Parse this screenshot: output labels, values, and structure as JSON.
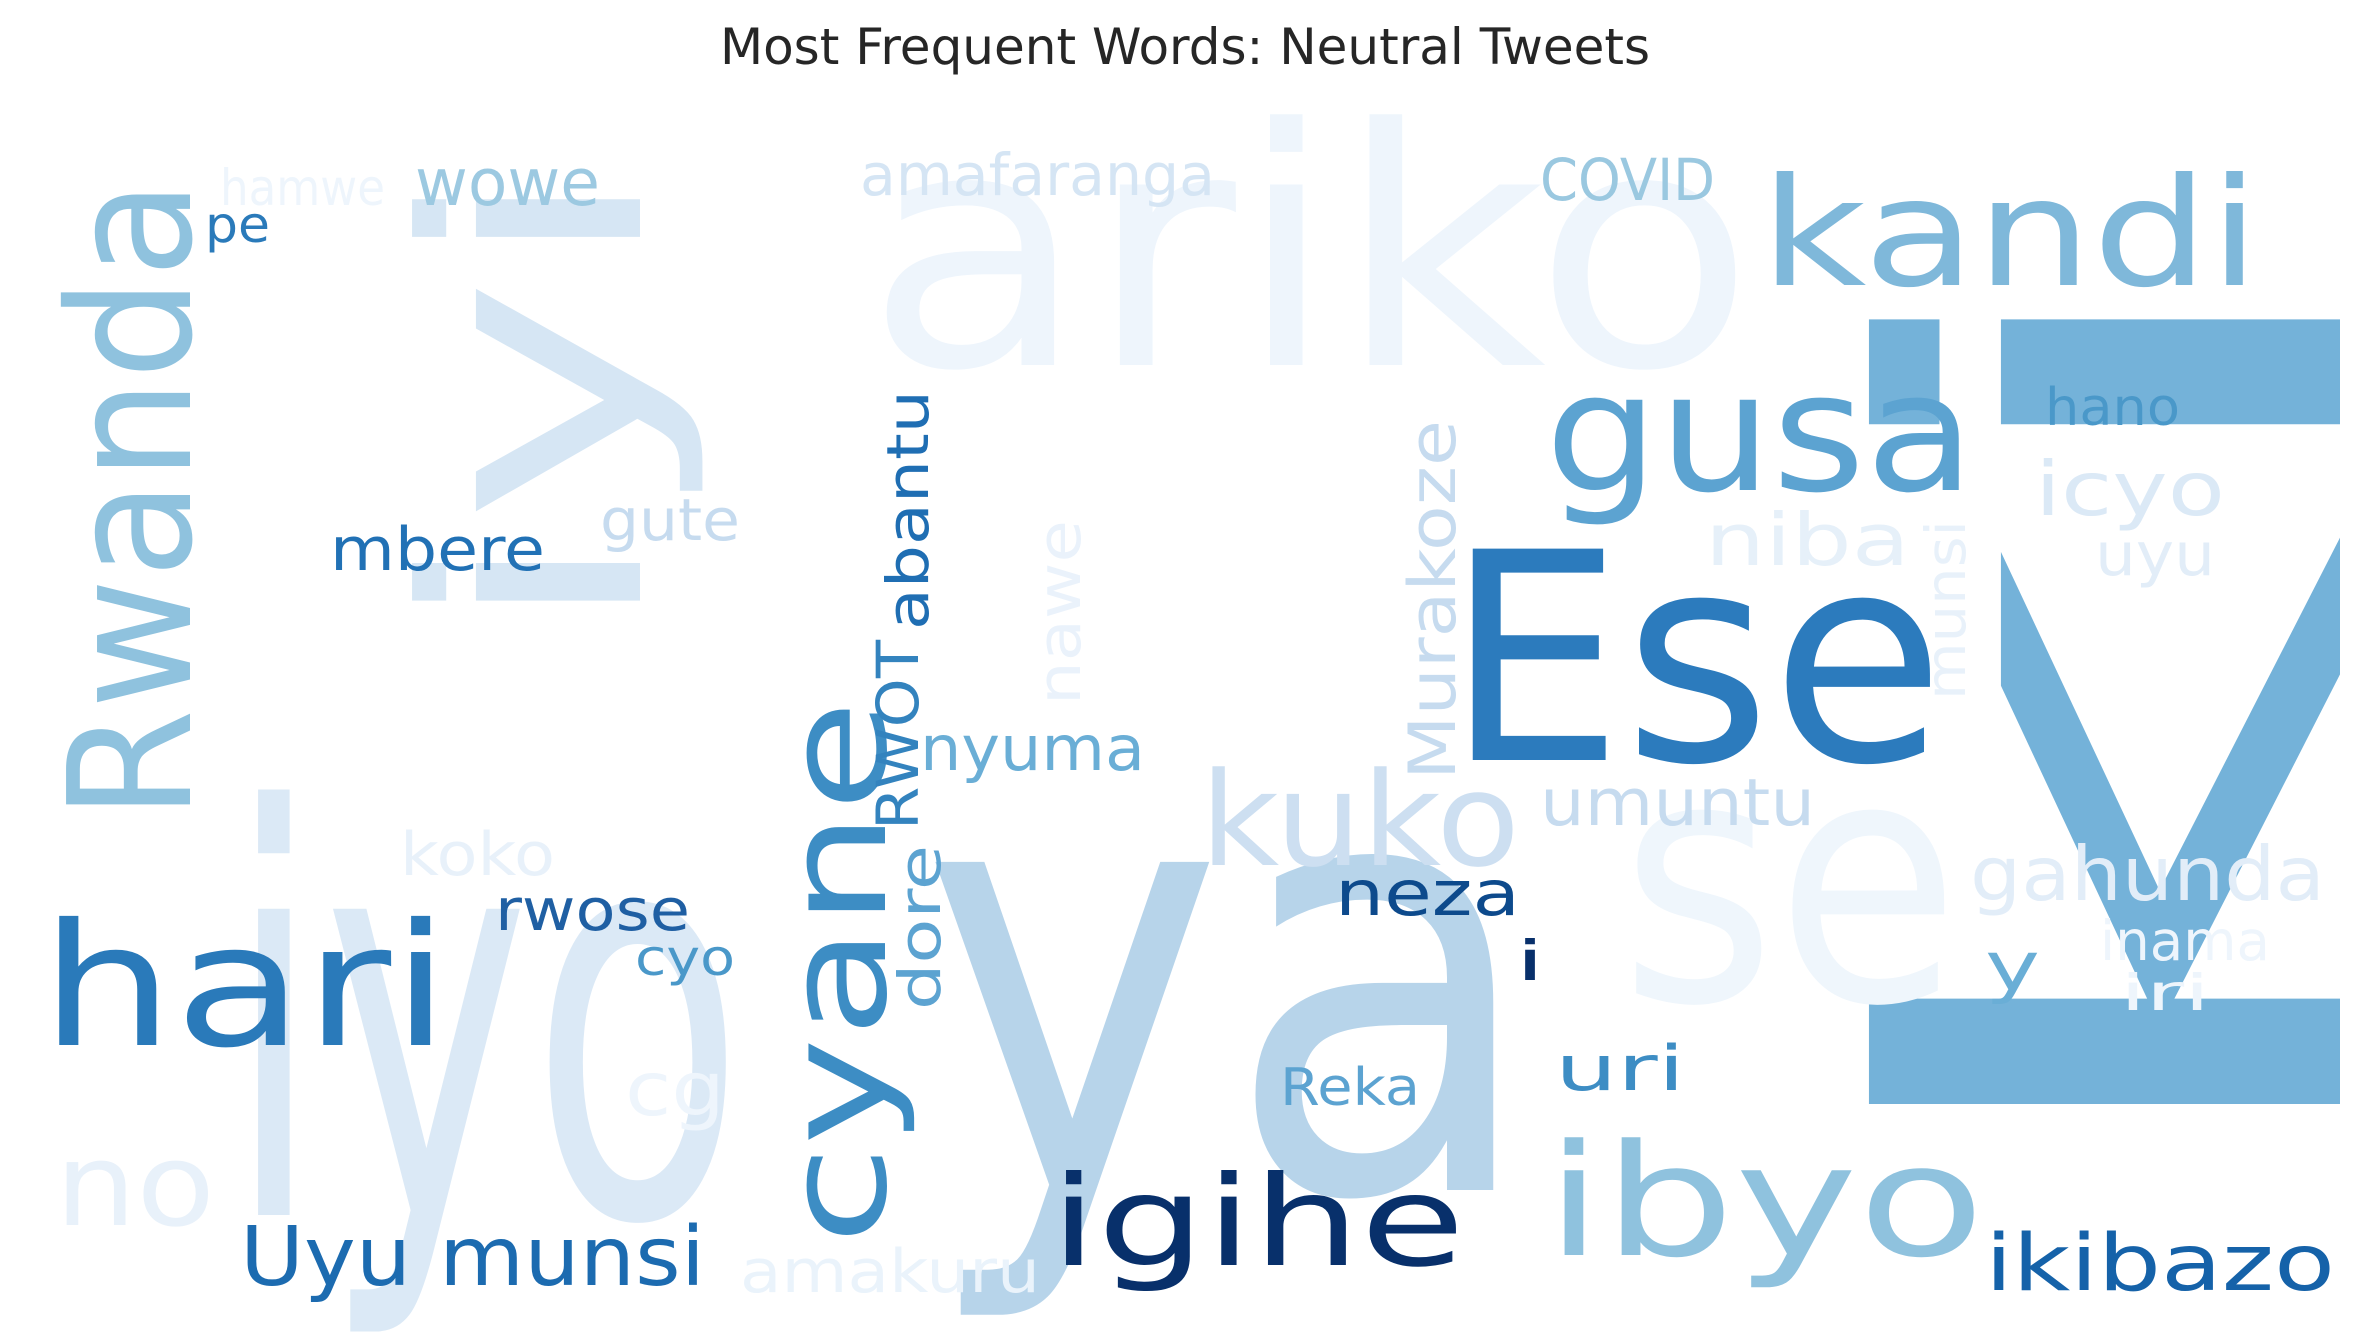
{
  "title": "Most Frequent Words: Neutral Tweets",
  "colormap": "Blues",
  "words": [
    {
      "text": "iyo",
      "color": "#dbe9f6"
    },
    {
      "text": "ya",
      "color": "#b7d4ea"
    },
    {
      "text": "ariko",
      "color": "#eef5fc"
    },
    {
      "text": "ki",
      "color": "#74b2d9"
    },
    {
      "text": "se",
      "color": "#eff6fc"
    },
    {
      "text": "Ese",
      "color": "#2c7bbd"
    },
    {
      "text": "iyi",
      "color": "#d6e6f4"
    },
    {
      "text": "Rwanda",
      "color": "#8fc2de"
    },
    {
      "text": "kandi",
      "color": "#7fb8da"
    },
    {
      "text": "gusa",
      "color": "#5ca3d1"
    },
    {
      "text": "hari",
      "color": "#2a7aba"
    },
    {
      "text": "cyane",
      "color": "#3d8dc4"
    },
    {
      "text": "igihe",
      "color": "#08306b"
    },
    {
      "text": "ibyo",
      "color": "#8fc2de"
    },
    {
      "text": "kuko",
      "color": "#cddff1"
    },
    {
      "text": "Uyu munsi",
      "color": "#1c6bb0"
    },
    {
      "text": "ikibazo",
      "color": "#1562a9"
    },
    {
      "text": "no",
      "color": "#e8f1fa"
    },
    {
      "text": "amakuru",
      "color": "#eaf3fb"
    },
    {
      "text": "wowe",
      "color": "#9cc9e1"
    },
    {
      "text": "hamwe",
      "color": "#eef5fc"
    },
    {
      "text": "pe",
      "color": "#2a7aba"
    },
    {
      "text": "amafaranga",
      "color": "#d5e5f4"
    },
    {
      "text": "COVID",
      "color": "#9ac8e0"
    },
    {
      "text": "hano",
      "color": "#4a98c9"
    },
    {
      "text": "icyo",
      "color": "#dbe9f6"
    },
    {
      "text": "niba",
      "color": "#e6f0f9"
    },
    {
      "text": "uyu",
      "color": "#e2edf8"
    },
    {
      "text": "munsi",
      "color": "#e8f1fa"
    },
    {
      "text": "mbere",
      "color": "#2171b5"
    },
    {
      "text": "gute",
      "color": "#c6dbef"
    },
    {
      "text": "abantu",
      "color": "#1f6eb3"
    },
    {
      "text": "RWOT",
      "color": "#3383be"
    },
    {
      "text": "nawe",
      "color": "#eaf2fb"
    },
    {
      "text": "Murakoze",
      "color": "#c6dbef"
    },
    {
      "text": "nyuma",
      "color": "#6aaed6"
    },
    {
      "text": "umuntu",
      "color": "#c6dbef"
    },
    {
      "text": "koko",
      "color": "#e8f1fa"
    },
    {
      "text": "rwose",
      "color": "#1f5fa3"
    },
    {
      "text": "cyo",
      "color": "#4a98c9"
    },
    {
      "text": "dore",
      "color": "#5ca3d1"
    },
    {
      "text": "neza",
      "color": "#0d4a8c"
    },
    {
      "text": "i",
      "color": "#08306b"
    },
    {
      "text": "gahunda",
      "color": "#e2edf8"
    },
    {
      "text": "y",
      "color": "#6aaed6"
    },
    {
      "text": "inama",
      "color": "#eef5fc"
    },
    {
      "text": "iri",
      "color": "#eef5fc"
    },
    {
      "text": "cg",
      "color": "#eef5fc"
    },
    {
      "text": "Reka",
      "color": "#5ca3d1"
    },
    {
      "text": "uri",
      "color": "#3d8dc4"
    }
  ]
}
